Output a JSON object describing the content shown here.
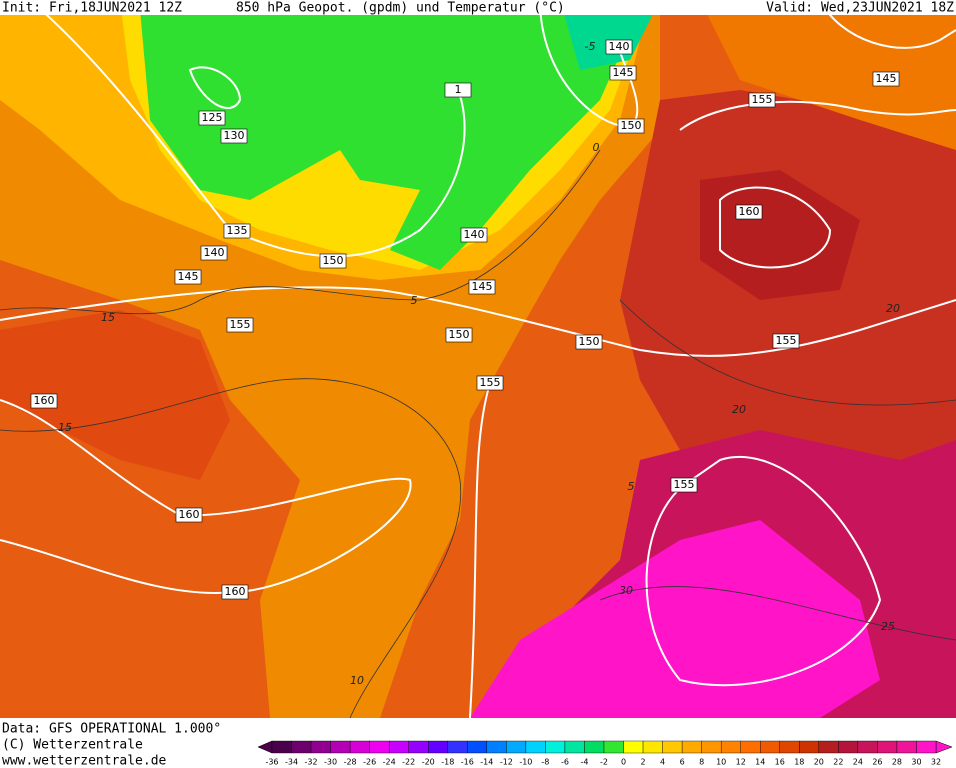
{
  "header": {
    "init": "Init: Fri,18JUN2021 12Z",
    "title": "850 hPa Geopot. (gpdm) und Temperatur (°C)",
    "valid": "Valid: Wed,23JUN2021 18Z"
  },
  "footer": {
    "source": "Data: GFS OPERATIONAL 1.000°",
    "copyright": "(C) Wetterzentrale",
    "url": "www.wetterzentrale.de"
  },
  "geopotential_labels": [
    125,
    130,
    135,
    140,
    145,
    150,
    155,
    160,
    160,
    160,
    150,
    155,
    145,
    140,
    150,
    145,
    140,
    155,
    160,
    145,
    155,
    150,
    155,
    1
  ],
  "temperature_labels": [
    -5,
    0,
    5,
    15,
    15,
    20,
    25,
    30,
    10,
    5,
    20
  ],
  "colorbar": {
    "ticks": [
      -36,
      -34,
      -32,
      -30,
      -28,
      -26,
      -24,
      -22,
      -20,
      -18,
      -16,
      -14,
      -12,
      -10,
      -8,
      -6,
      -4,
      -2,
      0,
      2,
      4,
      6,
      8,
      10,
      12,
      14,
      16,
      18,
      20,
      22,
      24,
      26,
      28,
      30,
      32
    ],
    "colors": [
      "#4b004b",
      "#6e006e",
      "#910091",
      "#b400b4",
      "#d700d7",
      "#f000f0",
      "#c800ff",
      "#9600ff",
      "#6400ff",
      "#3232ff",
      "#0050ff",
      "#0080ff",
      "#00aaff",
      "#00d2ff",
      "#00f0dc",
      "#00e6a0",
      "#00dc64",
      "#32e632",
      "#ffff00",
      "#ffe600",
      "#ffc800",
      "#ffaa00",
      "#ff9600",
      "#ff8200",
      "#ff6e00",
      "#f05a00",
      "#e04600",
      "#cd3200",
      "#b41e1e",
      "#b4143c",
      "#c8145a",
      "#e01478",
      "#f0149b",
      "#ff14c8"
    ]
  }
}
